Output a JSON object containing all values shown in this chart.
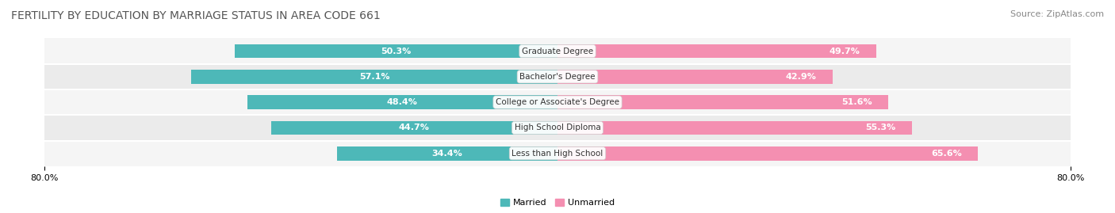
{
  "title": "FERTILITY BY EDUCATION BY MARRIAGE STATUS IN AREA CODE 661",
  "source": "Source: ZipAtlas.com",
  "categories": [
    "Less than High School",
    "High School Diploma",
    "College or Associate's Degree",
    "Bachelor's Degree",
    "Graduate Degree"
  ],
  "married": [
    34.4,
    44.7,
    48.4,
    57.1,
    50.3
  ],
  "unmarried": [
    65.6,
    55.3,
    51.6,
    42.9,
    49.7
  ],
  "married_color": "#4db8b8",
  "unmarried_color": "#f48fb1",
  "bar_bg_color": "#e8e8e8",
  "background_color": "#ffffff",
  "axis_min": -80.0,
  "axis_max": 80.0,
  "title_fontsize": 10,
  "source_fontsize": 8,
  "label_fontsize": 8,
  "bar_height": 0.55,
  "row_bg_colors": [
    "#f0f0f0",
    "#e8e8e8"
  ]
}
